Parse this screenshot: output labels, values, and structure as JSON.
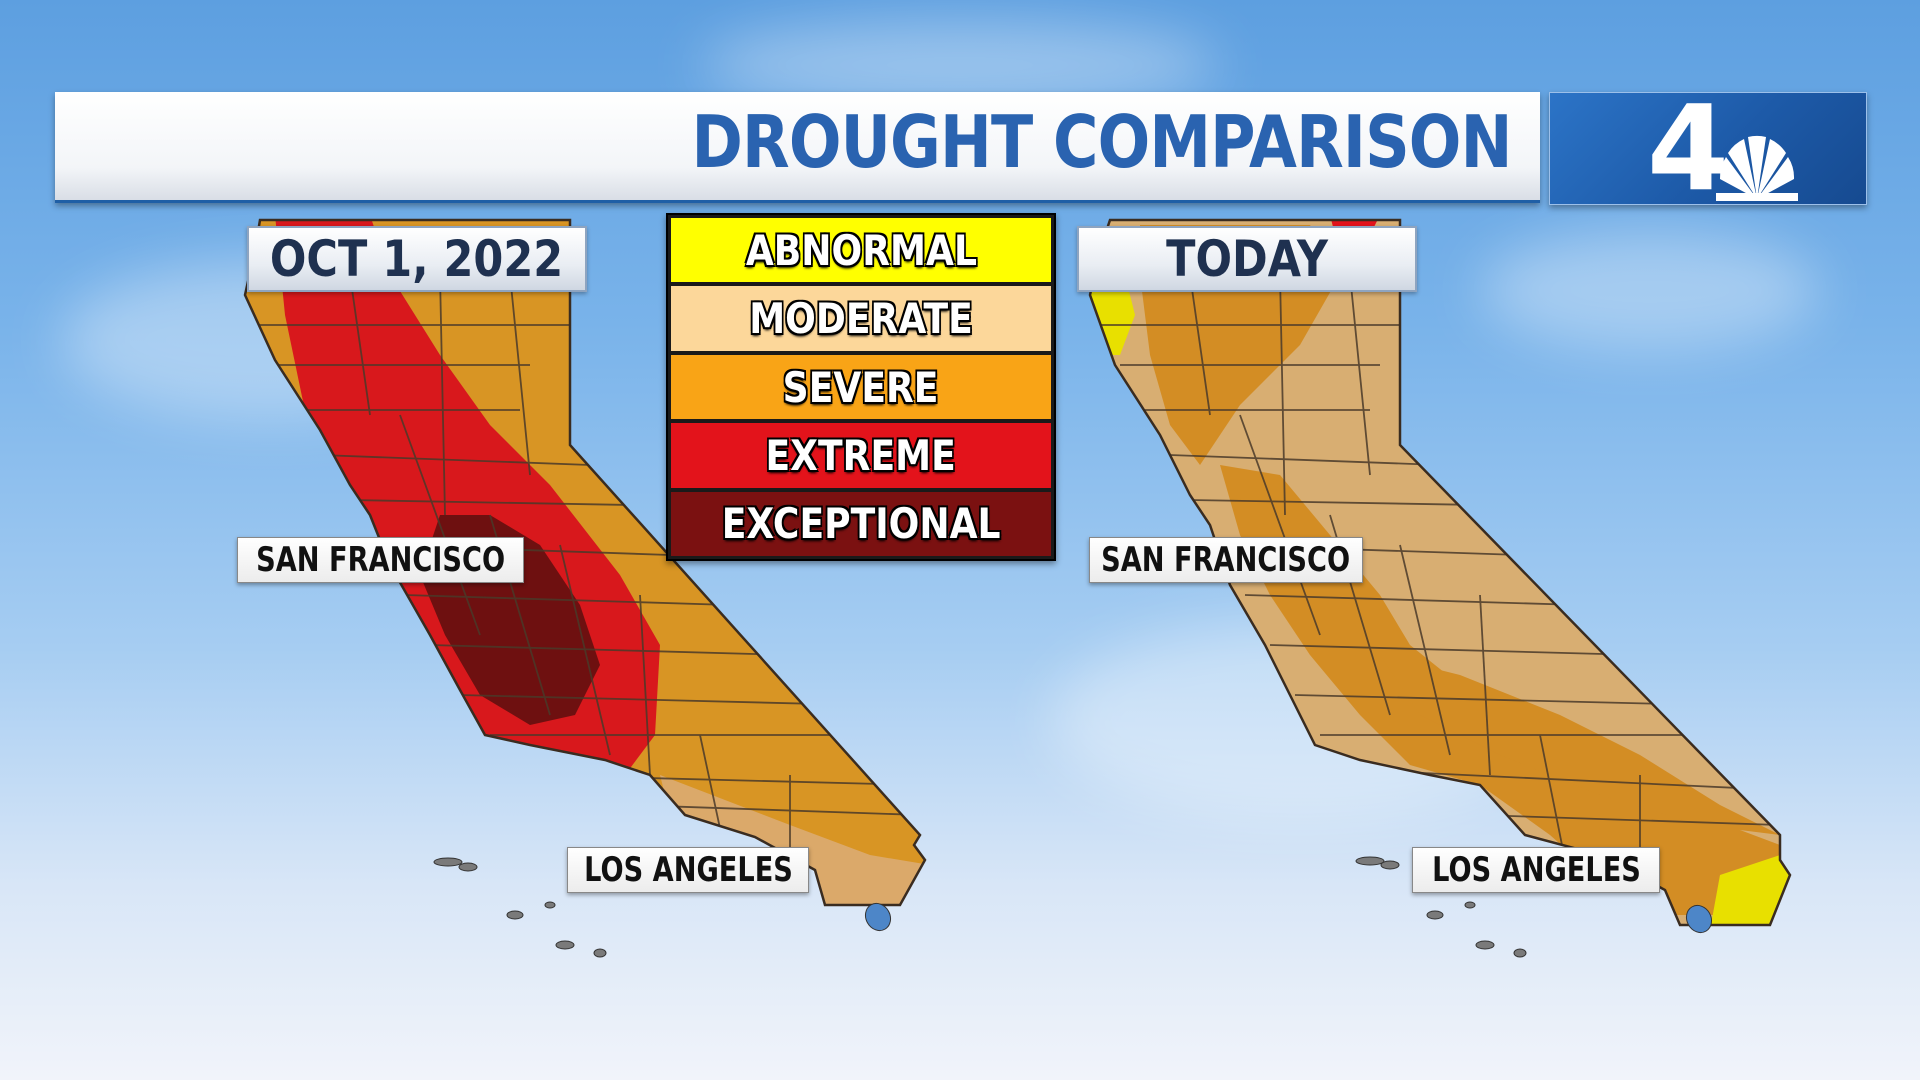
{
  "header": {
    "title": "DROUGHT COMPARISON"
  },
  "logo": {
    "channel_number": "4",
    "icon": "nbc-peacock-icon"
  },
  "legend": {
    "items": [
      {
        "label": "ABNORMAL",
        "color": "#ffff00"
      },
      {
        "label": "MODERATE",
        "color": "#fcd79a"
      },
      {
        "label": "SEVERE",
        "color": "#f9a416"
      },
      {
        "label": "EXTREME",
        "color": "#e3131b"
      },
      {
        "label": "EXCEPTIONAL",
        "color": "#7b1111"
      }
    ]
  },
  "maps": {
    "left": {
      "date_label": "OCT 1, 2022",
      "cities": {
        "north": "SAN FRANCISCO",
        "south": "LOS ANGELES"
      }
    },
    "right": {
      "date_label": "TODAY",
      "cities": {
        "north": "SAN FRANCISCO",
        "south": "LOS ANGELES"
      }
    }
  },
  "colors": {
    "title_text": "#2a63b0",
    "logo_background": "#1d5aa8",
    "water": "#4d86c8"
  }
}
